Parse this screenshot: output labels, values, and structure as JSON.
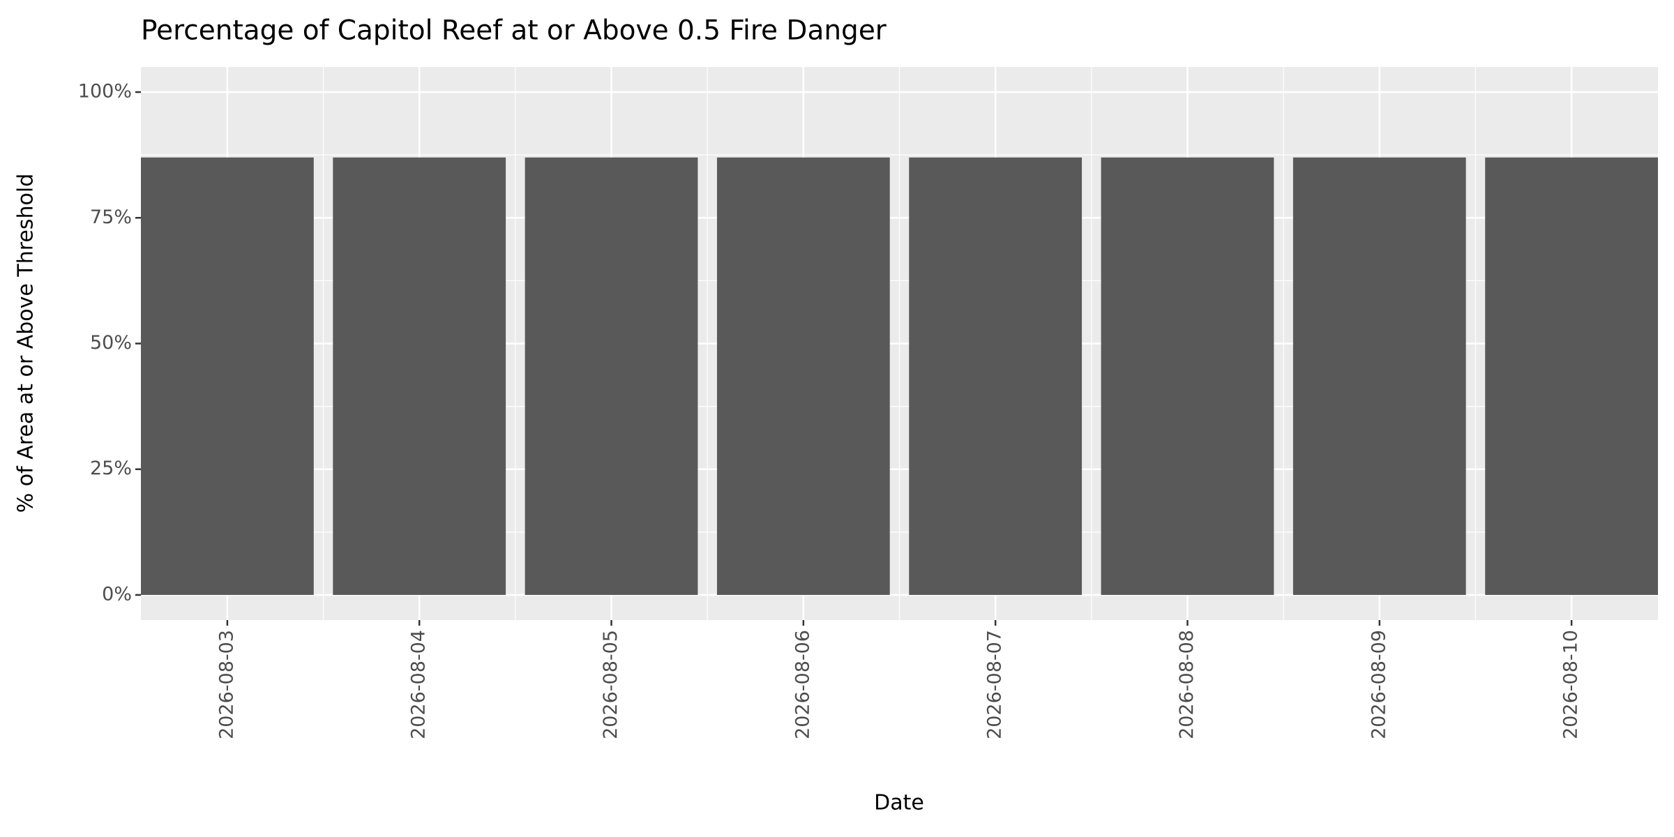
{
  "chart_data": {
    "type": "bar",
    "title": "Percentage of Capitol Reef at or Above 0.5 Fire Danger",
    "x_label": "Date",
    "y_label": "% of Area at or Above Threshold",
    "categories": [
      "2026-08-03",
      "2026-08-04",
      "2026-08-05",
      "2026-08-06",
      "2026-08-07",
      "2026-08-08",
      "2026-08-09",
      "2026-08-10"
    ],
    "values": [
      87,
      87,
      87,
      87,
      87,
      87,
      87,
      87
    ],
    "color": "#595959",
    "ylim": [
      -5,
      105
    ],
    "yticks": [
      {
        "value": 0,
        "label": "0%"
      },
      {
        "value": 25,
        "label": "25%"
      },
      {
        "value": 50,
        "label": "50%"
      },
      {
        "value": 75,
        "label": "75%"
      },
      {
        "value": 100,
        "label": "100%"
      }
    ],
    "grid": true
  }
}
